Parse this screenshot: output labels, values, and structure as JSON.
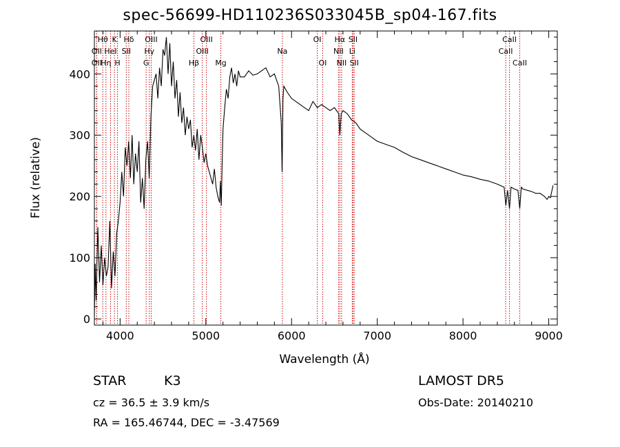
{
  "chart_data": {
    "type": "line",
    "title": "spec-56699-HD110236S033045B_sp04-167.fits",
    "xlabel": "Wavelength (Å)",
    "ylabel": "Flux (relative)",
    "xlim": [
      3700,
      9100
    ],
    "ylim": [
      -10,
      470
    ],
    "xticks": [
      4000,
      5000,
      6000,
      7000,
      8000,
      9000
    ],
    "yticks": [
      0,
      100,
      200,
      300,
      400
    ],
    "grid": false,
    "series": [
      {
        "x": [
          3700,
          3710,
          3720,
          3740,
          3760,
          3780,
          3800,
          3820,
          3840,
          3860,
          3880,
          3900,
          3920,
          3940,
          3960,
          3980,
          4000,
          4020,
          4040,
          4060,
          4080,
          4100,
          4120,
          4140,
          4160,
          4180,
          4200,
          4220,
          4240,
          4260,
          4280,
          4300,
          4320,
          4340,
          4360,
          4380,
          4400,
          4420,
          4440,
          4460,
          4480,
          4500,
          4520,
          4540,
          4560,
          4580,
          4600,
          4620,
          4640,
          4660,
          4680,
          4700,
          4720,
          4740,
          4760,
          4780,
          4800,
          4820,
          4840,
          4860,
          4880,
          4900,
          4920,
          4940,
          4960,
          4980,
          5000,
          5020,
          5040,
          5060,
          5080,
          5100,
          5120,
          5140,
          5160,
          5170,
          5180,
          5190,
          5200,
          5220,
          5240,
          5260,
          5280,
          5300,
          5320,
          5340,
          5360,
          5380,
          5400,
          5450,
          5500,
          5550,
          5600,
          5650,
          5700,
          5750,
          5800,
          5850,
          5880,
          5890,
          5900,
          5910,
          5950,
          6000,
          6050,
          6100,
          6150,
          6200,
          6250,
          6300,
          6350,
          6400,
          6450,
          6500,
          6550,
          6563,
          6580,
          6600,
          6650,
          6700,
          6750,
          6800,
          6850,
          6900,
          6950,
          7000,
          7100,
          7200,
          7300,
          7400,
          7500,
          7600,
          7700,
          7800,
          7900,
          8000,
          8100,
          8200,
          8300,
          8400,
          8480,
          8500,
          8520,
          8542,
          8560,
          8600,
          8640,
          8662,
          8680,
          8700,
          8750,
          8800,
          8850,
          8900,
          8950,
          8980,
          9000,
          9020,
          9050
        ],
        "y": [
          5,
          90,
          30,
          150,
          60,
          120,
          55,
          100,
          70,
          85,
          160,
          50,
          110,
          70,
          140,
          160,
          190,
          240,
          200,
          280,
          250,
          290,
          230,
          300,
          220,
          270,
          240,
          290,
          190,
          230,
          180,
          260,
          290,
          230,
          330,
          380,
          390,
          400,
          360,
          410,
          380,
          440,
          430,
          460,
          400,
          450,
          380,
          420,
          360,
          390,
          330,
          370,
          320,
          345,
          300,
          330,
          310,
          325,
          280,
          300,
          275,
          310,
          260,
          300,
          280,
          255,
          270,
          250,
          240,
          230,
          220,
          245,
          215,
          200,
          190,
          225,
          185,
          250,
          310,
          345,
          375,
          360,
          395,
          410,
          385,
          400,
          380,
          405,
          395,
          395,
          405,
          398,
          400,
          405,
          410,
          395,
          400,
          380,
          320,
          240,
          360,
          380,
          370,
          360,
          355,
          350,
          345,
          340,
          355,
          345,
          350,
          345,
          340,
          345,
          335,
          300,
          335,
          340,
          335,
          325,
          320,
          310,
          305,
          300,
          295,
          290,
          285,
          280,
          272,
          265,
          260,
          255,
          250,
          245,
          240,
          235,
          232,
          228,
          225,
          220,
          215,
          185,
          210,
          180,
          215,
          212,
          210,
          180,
          215,
          212,
          210,
          208,
          205,
          205,
          200,
          195,
          200,
          198,
          218
        ]
      }
    ],
    "line_markers": [
      {
        "label": "Hθ",
        "x": 3798,
        "row": 1
      },
      {
        "label": "OII",
        "x": 3727,
        "row": 2
      },
      {
        "label": "OII",
        "x": 3727,
        "row": 3
      },
      {
        "label": "K",
        "x": 3934,
        "row": 1
      },
      {
        "label": "HeI",
        "x": 3889,
        "row": 2
      },
      {
        "label": "Hη",
        "x": 3835,
        "row": 3
      },
      {
        "label": "H",
        "x": 3969,
        "row": 3
      },
      {
        "label": "Hδ",
        "x": 4102,
        "row": 1
      },
      {
        "label": "SII",
        "x": 4072,
        "row": 2
      },
      {
        "label": "OIII",
        "x": 4363,
        "row": 1
      },
      {
        "label": "Hγ",
        "x": 4341,
        "row": 2
      },
      {
        "label": "G",
        "x": 4304,
        "row": 3
      },
      {
        "label": "OIII",
        "x": 5007,
        "row": 1
      },
      {
        "label": "OIII",
        "x": 4959,
        "row": 2
      },
      {
        "label": "Hβ",
        "x": 4861,
        "row": 3
      },
      {
        "label": "Mg",
        "x": 5175,
        "row": 3
      },
      {
        "label": "Na",
        "x": 5893,
        "row": 2
      },
      {
        "label": "OI",
        "x": 6300,
        "row": 1
      },
      {
        "label": "OI",
        "x": 6363,
        "row": 3
      },
      {
        "label": "Hα",
        "x": 6563,
        "row": 1
      },
      {
        "label": "SII",
        "x": 6717,
        "row": 1
      },
      {
        "label": "NII",
        "x": 6548,
        "row": 2
      },
      {
        "label": "Li",
        "x": 6708,
        "row": 2
      },
      {
        "label": "NII",
        "x": 6584,
        "row": 3
      },
      {
        "label": "SII",
        "x": 6731,
        "row": 3
      },
      {
        "label": "CaII",
        "x": 8542,
        "row": 1
      },
      {
        "label": "CaII",
        "x": 8498,
        "row": 2
      },
      {
        "label": "CaII",
        "x": 8662,
        "row": 3
      }
    ],
    "marker_color": "#cc0000"
  },
  "info": {
    "object_class": "STAR",
    "subclass": "K3",
    "survey": "LAMOST DR5",
    "cz": "cz = 36.5 ± 3.9 km/s",
    "obs_date": "Obs-Date: 20140210",
    "coords": "RA = 165.46744, DEC =  -3.47569"
  }
}
